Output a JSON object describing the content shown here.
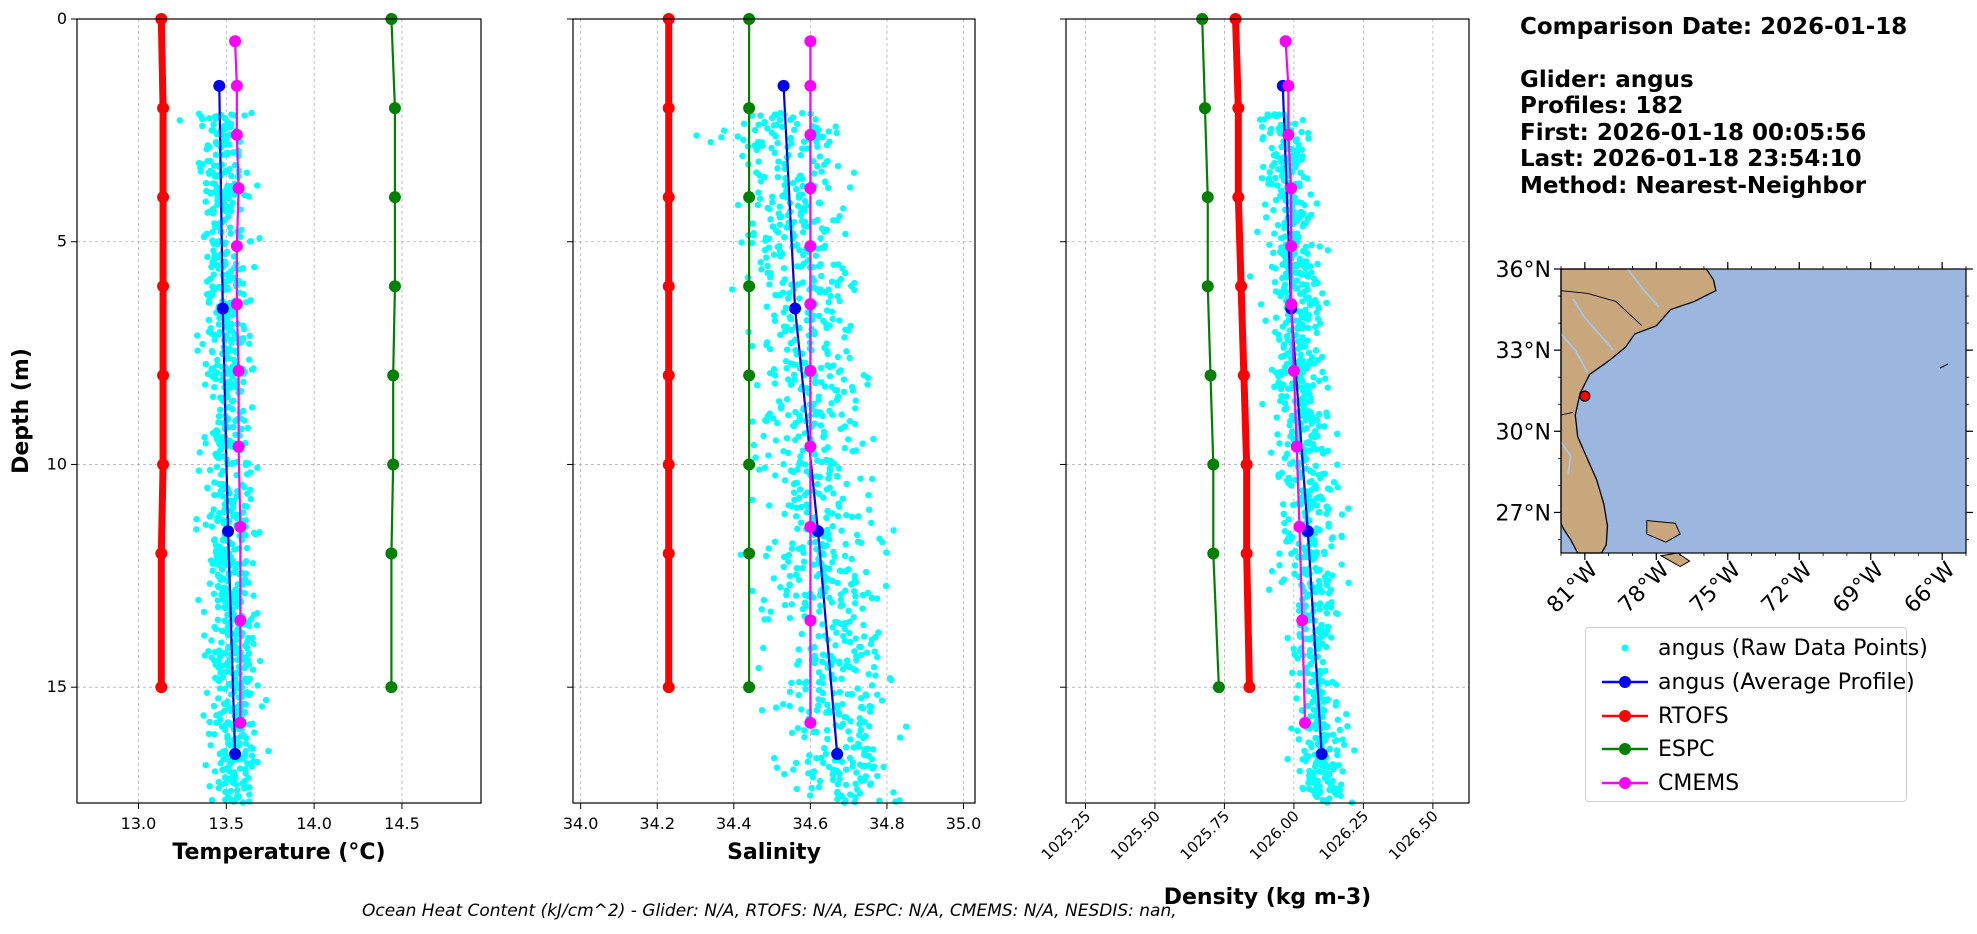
{
  "colors": {
    "raw": "#00ffff",
    "average": "#0000ee",
    "rtofs": "#ff0000",
    "espc": "#008000",
    "cmems": "#ff00ff",
    "land": "#c8a77c",
    "ocean": "#9bb7e0",
    "grid": "#b0b0b0"
  },
  "info": {
    "comparison_date": "Comparison Date: 2026-01-18",
    "glider": "Glider: angus",
    "profiles": "Profiles: 182",
    "first": "First: 2026-01-18 00:05:56",
    "last": "Last: 2026-01-18 23:54:10",
    "method": "Method: Nearest-Neighbor"
  },
  "footer": "Ocean Heat Content (kJ/cm^2) - Glider: N/A,  RTOFS: N/A,  ESPC: N/A,  CMEMS: N/A,  NESDIS: nan,",
  "legend": [
    {
      "key": "raw",
      "label": "angus (Raw Data Points)",
      "style": "dot"
    },
    {
      "key": "average",
      "label": "angus (Average Profile)",
      "style": "line-marker"
    },
    {
      "key": "rtofs",
      "label": "RTOFS",
      "style": "line-marker"
    },
    {
      "key": "espc",
      "label": "ESPC",
      "style": "line-marker"
    },
    {
      "key": "cmems",
      "label": "CMEMS",
      "style": "line-marker"
    }
  ],
  "chart_data": [
    {
      "type": "line",
      "title": "",
      "xlabel": "Temperature (°C)",
      "ylabel": "Depth (m)",
      "xlim": [
        12.65,
        14.95
      ],
      "ylim": [
        17.6,
        0
      ],
      "xticks": [
        13.0,
        13.5,
        14.0,
        14.5
      ],
      "xtick_labels": [
        "13.0",
        "13.5",
        "14.0",
        "14.5"
      ],
      "yticks": [
        0,
        5,
        10,
        15
      ],
      "ytick_labels": [
        "0",
        "5",
        "10",
        "15"
      ],
      "grid": true,
      "raw_scatter": {
        "x_center": 13.5,
        "x_spread": 0.12,
        "depth_range": [
          2.1,
          17.6
        ],
        "count": 900
      },
      "series": [
        {
          "name": "angus (Average Profile)",
          "key": "average",
          "points": [
            [
              13.46,
              1.5
            ],
            [
              13.48,
              6.5
            ],
            [
              13.51,
              11.5
            ],
            [
              13.55,
              16.5
            ]
          ]
        },
        {
          "name": "RTOFS",
          "key": "rtofs",
          "points": [
            [
              13.13,
              0
            ],
            [
              13.14,
              2
            ],
            [
              13.14,
              4
            ],
            [
              13.14,
              6
            ],
            [
              13.14,
              8
            ],
            [
              13.14,
              10
            ],
            [
              13.13,
              12
            ],
            [
              13.13,
              15
            ]
          ]
        },
        {
          "name": "ESPC",
          "key": "espc",
          "points": [
            [
              14.44,
              0
            ],
            [
              14.46,
              2
            ],
            [
              14.46,
              4
            ],
            [
              14.46,
              6
            ],
            [
              14.45,
              8
            ],
            [
              14.45,
              10
            ],
            [
              14.44,
              12
            ],
            [
              14.44,
              15
            ]
          ]
        },
        {
          "name": "CMEMS",
          "key": "cmems",
          "points": [
            [
              13.55,
              0.5
            ],
            [
              13.56,
              1.5
            ],
            [
              13.56,
              2.6
            ],
            [
              13.57,
              3.8
            ],
            [
              13.56,
              5.1
            ],
            [
              13.56,
              6.4
            ],
            [
              13.57,
              7.9
            ],
            [
              13.57,
              9.6
            ],
            [
              13.58,
              11.4
            ],
            [
              13.58,
              13.5
            ],
            [
              13.58,
              15.8
            ]
          ]
        }
      ]
    },
    {
      "type": "line",
      "title": "",
      "xlabel": "Salinity",
      "ylabel": "",
      "xlim": [
        33.98,
        35.03
      ],
      "ylim": [
        17.6,
        0
      ],
      "xticks": [
        34.0,
        34.2,
        34.4,
        34.6,
        34.8,
        35.0
      ],
      "xtick_labels": [
        "34.0",
        "34.2",
        "34.4",
        "34.6",
        "34.8",
        "35.0"
      ],
      "yticks": [
        0,
        5,
        10,
        15
      ],
      "ytick_labels": [
        "",
        "",
        "",
        ""
      ],
      "grid": true,
      "raw_scatter": {
        "x_center": 34.59,
        "x_spread": 0.13,
        "depth_range": [
          2.1,
          17.6
        ],
        "count": 900
      },
      "series": [
        {
          "name": "angus (Average Profile)",
          "key": "average",
          "points": [
            [
              34.53,
              1.5
            ],
            [
              34.56,
              6.5
            ],
            [
              34.62,
              11.5
            ],
            [
              34.67,
              16.5
            ]
          ]
        },
        {
          "name": "RTOFS",
          "key": "rtofs",
          "points": [
            [
              34.23,
              0
            ],
            [
              34.23,
              2
            ],
            [
              34.23,
              4
            ],
            [
              34.23,
              6
            ],
            [
              34.23,
              8
            ],
            [
              34.23,
              10
            ],
            [
              34.23,
              12
            ],
            [
              34.23,
              15
            ]
          ]
        },
        {
          "name": "ESPC",
          "key": "espc",
          "points": [
            [
              34.44,
              0
            ],
            [
              34.44,
              2
            ],
            [
              34.44,
              4
            ],
            [
              34.44,
              6
            ],
            [
              34.44,
              8
            ],
            [
              34.44,
              10
            ],
            [
              34.44,
              12
            ],
            [
              34.44,
              15
            ]
          ]
        },
        {
          "name": "CMEMS",
          "key": "cmems",
          "points": [
            [
              34.6,
              0.5
            ],
            [
              34.6,
              1.5
            ],
            [
              34.6,
              2.6
            ],
            [
              34.6,
              3.8
            ],
            [
              34.6,
              5.1
            ],
            [
              34.6,
              6.4
            ],
            [
              34.6,
              7.9
            ],
            [
              34.6,
              9.6
            ],
            [
              34.6,
              11.4
            ],
            [
              34.6,
              13.5
            ],
            [
              34.6,
              15.8
            ]
          ]
        }
      ]
    },
    {
      "type": "line",
      "title": "",
      "xlabel": "Density (kg m-3)",
      "ylabel": "",
      "xlim": [
        1025.18,
        1026.63
      ],
      "ylim": [
        17.6,
        0
      ],
      "xticks": [
        1025.25,
        1025.5,
        1025.75,
        1026.0,
        1026.25,
        1026.5
      ],
      "xtick_labels": [
        "1025.25",
        "1025.50",
        "1025.75",
        "1026.00",
        "1026.25",
        "1026.50"
      ],
      "yticks": [
        0,
        5,
        10,
        15
      ],
      "ytick_labels": [
        "",
        "",
        "",
        ""
      ],
      "grid": true,
      "raw_scatter": {
        "x_center": 1026.03,
        "x_spread": 0.085,
        "depth_range": [
          2.1,
          17.6
        ],
        "count": 900
      },
      "series": [
        {
          "name": "angus (Average Profile)",
          "key": "average",
          "points": [
            [
              1025.96,
              1.5
            ],
            [
              1025.99,
              6.5
            ],
            [
              1026.05,
              11.5
            ],
            [
              1026.1,
              16.5
            ]
          ]
        },
        {
          "name": "RTOFS",
          "key": "rtofs",
          "points": [
            [
              1025.79,
              0
            ],
            [
              1025.8,
              2
            ],
            [
              1025.8,
              4
            ],
            [
              1025.81,
              6
            ],
            [
              1025.82,
              8
            ],
            [
              1025.83,
              10
            ],
            [
              1025.83,
              12
            ],
            [
              1025.84,
              15
            ]
          ]
        },
        {
          "name": "ESPC",
          "key": "espc",
          "points": [
            [
              1025.67,
              0
            ],
            [
              1025.68,
              2
            ],
            [
              1025.69,
              4
            ],
            [
              1025.69,
              6
            ],
            [
              1025.7,
              8
            ],
            [
              1025.71,
              10
            ],
            [
              1025.71,
              12
            ],
            [
              1025.73,
              15
            ]
          ]
        },
        {
          "name": "CMEMS",
          "key": "cmems",
          "points": [
            [
              1025.97,
              0.5
            ],
            [
              1025.98,
              1.5
            ],
            [
              1025.98,
              2.6
            ],
            [
              1025.99,
              3.8
            ],
            [
              1025.99,
              5.1
            ],
            [
              1025.99,
              6.4
            ],
            [
              1026.0,
              7.9
            ],
            [
              1026.01,
              9.6
            ],
            [
              1026.02,
              11.4
            ],
            [
              1026.03,
              13.5
            ],
            [
              1026.04,
              15.8
            ]
          ]
        }
      ]
    }
  ],
  "map": {
    "lon_range": [
      -82.0,
      -65.0
    ],
    "lat_range": [
      25.5,
      36.0
    ],
    "lat_ticks": [
      36,
      33,
      30,
      27
    ],
    "lat_tick_labels": [
      "36°N",
      "33°N",
      "30°N",
      "27°N"
    ],
    "lon_ticks": [
      -81,
      -78,
      -75,
      -72,
      -69,
      -66
    ],
    "lon_tick_labels": [
      "81°W",
      "78°W",
      "75°W",
      "72°W",
      "69°W",
      "66°W"
    ],
    "glider_position": {
      "lon": -81.0,
      "lat": 31.3
    }
  }
}
